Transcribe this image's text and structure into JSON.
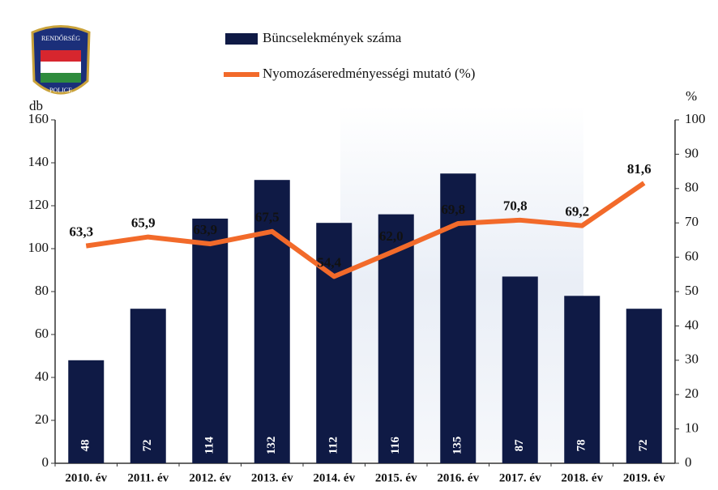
{
  "chart_data": {
    "type": "bar",
    "logo_texts": [
      "RENDŐRSÉG",
      "POLICE"
    ],
    "y_label": "db",
    "y2_label": "%",
    "categories": [
      "2010. év",
      "2011. év",
      "2012. év",
      "2013. év",
      "2014. év",
      "2015. év",
      "2016. év",
      "2017. év",
      "2018. év",
      "2019. év"
    ],
    "series": [
      {
        "name": "Büncselekmények száma",
        "type": "bar",
        "color": "#0f1a45",
        "values": [
          48,
          72,
          114,
          132,
          112,
          116,
          135,
          87,
          78,
          72
        ]
      },
      {
        "name": "Nyomozáseredményességi mutató (%)",
        "type": "line",
        "axis": "y2",
        "color": "#f26a2a",
        "values": [
          63.3,
          65.9,
          63.9,
          67.5,
          54.4,
          62.0,
          69.8,
          70.8,
          69.2,
          81.6
        ],
        "value_labels": [
          "63,3",
          "65,9",
          "63,9",
          "67,5",
          "54,4",
          "62,0",
          "69,8",
          "70,8",
          "69,2",
          "81,6"
        ]
      }
    ],
    "ylim": [
      0,
      160
    ],
    "yticks": [
      0,
      20,
      40,
      60,
      80,
      100,
      120,
      140,
      160
    ],
    "y2lim": [
      0,
      100
    ],
    "y2ticks": [
      0,
      10,
      20,
      30,
      40,
      50,
      60,
      70,
      80,
      90,
      100
    ],
    "grid": false
  }
}
